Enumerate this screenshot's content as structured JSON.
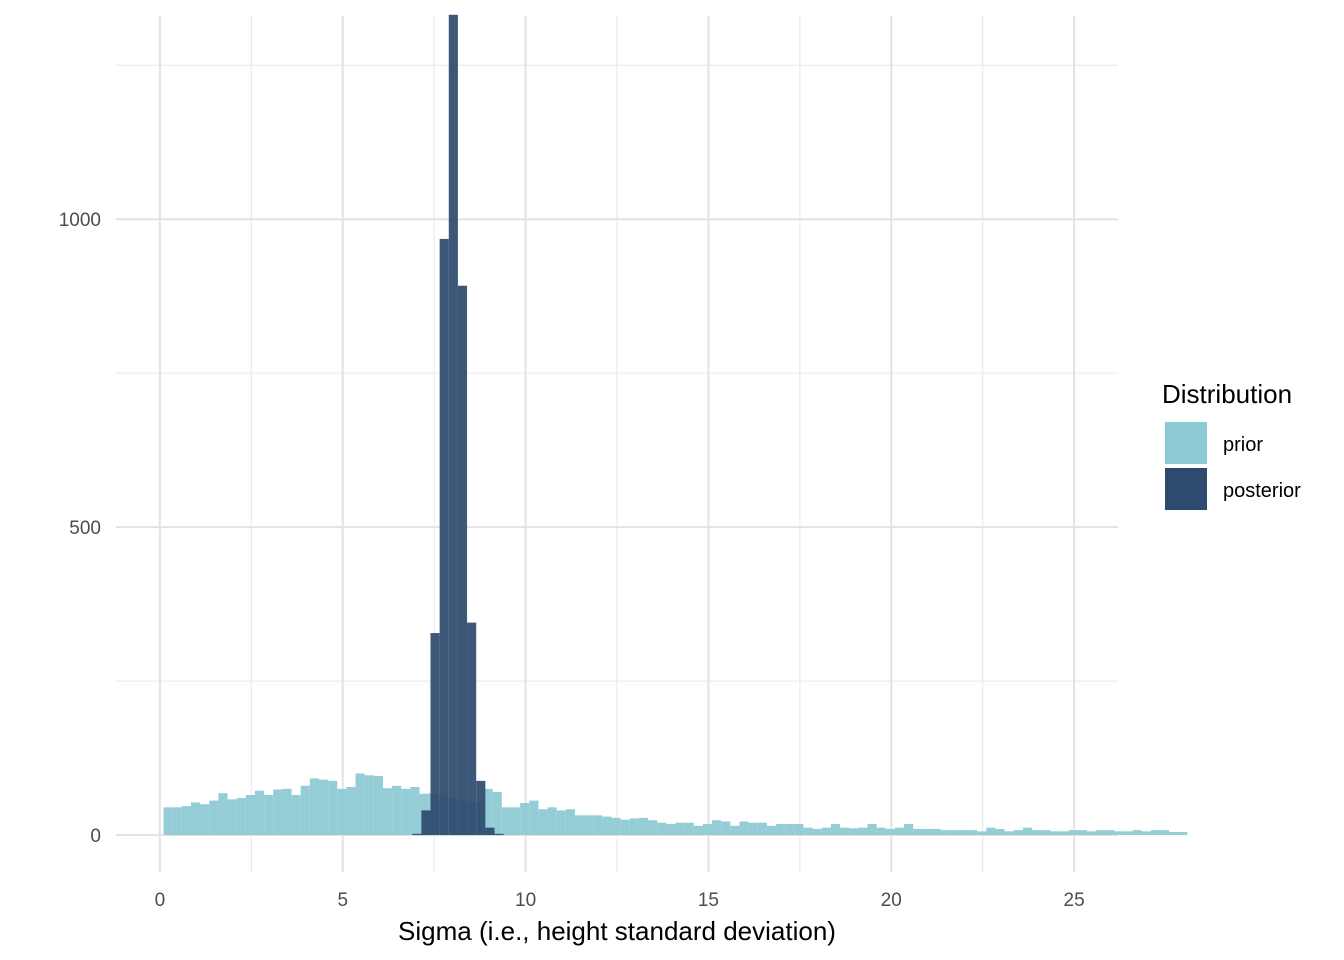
{
  "chart_data": {
    "type": "histogram",
    "title": "",
    "xlabel": "Sigma (i.e., height standard deviation)",
    "ylabel": "",
    "xlim": [
      -1.2,
      26.2
    ],
    "ylim": [
      -60,
      1330
    ],
    "x_ticks": [
      0,
      5,
      10,
      15,
      20,
      25
    ],
    "x_tick_labels": [
      "0",
      "5",
      "10",
      "15",
      "20",
      "25"
    ],
    "y_ticks": [
      0,
      500,
      1000
    ],
    "y_tick_labels": [
      "0",
      "500",
      "1000"
    ],
    "legend": {
      "title": "Distribution",
      "position": "right",
      "entries": [
        {
          "label": "prior",
          "color": "#8ECAD4"
        },
        {
          "label": "posterior",
          "color": "#2E4A6E"
        }
      ]
    },
    "series": [
      {
        "name": "prior",
        "color": "#8ECAD4",
        "opacity": 0.95,
        "bin_start": 0.1,
        "bin_width": 0.25,
        "counts": [
          45,
          45,
          47,
          53,
          50,
          56,
          68,
          58,
          60,
          65,
          72,
          65,
          74,
          75,
          65,
          80,
          92,
          90,
          88,
          75,
          78,
          100,
          97,
          96,
          76,
          80,
          75,
          78,
          67,
          68,
          66,
          60,
          58,
          55,
          55,
          75,
          70,
          45,
          45,
          52,
          56,
          42,
          45,
          40,
          42,
          32,
          32,
          32,
          30,
          28,
          25,
          27,
          28,
          24,
          20,
          18,
          20,
          20,
          15,
          18,
          24,
          22,
          15,
          22,
          20,
          20,
          15,
          18,
          18,
          18,
          12,
          10,
          12,
          18,
          12,
          11,
          12,
          18,
          12,
          10,
          12,
          18,
          10,
          10,
          10,
          8,
          8,
          8,
          8,
          6,
          12,
          10,
          6,
          8,
          12,
          8,
          8,
          6,
          6,
          8,
          8,
          6,
          8,
          8,
          6,
          6,
          8,
          6,
          8,
          8,
          5,
          5
        ]
      },
      {
        "name": "posterior",
        "color": "#2E4A6E",
        "opacity": 0.93,
        "bin_start": 6.9,
        "bin_width": 0.25,
        "counts": [
          2,
          40,
          328,
          968,
          1332,
          892,
          345,
          88,
          12,
          2
        ]
      }
    ]
  }
}
